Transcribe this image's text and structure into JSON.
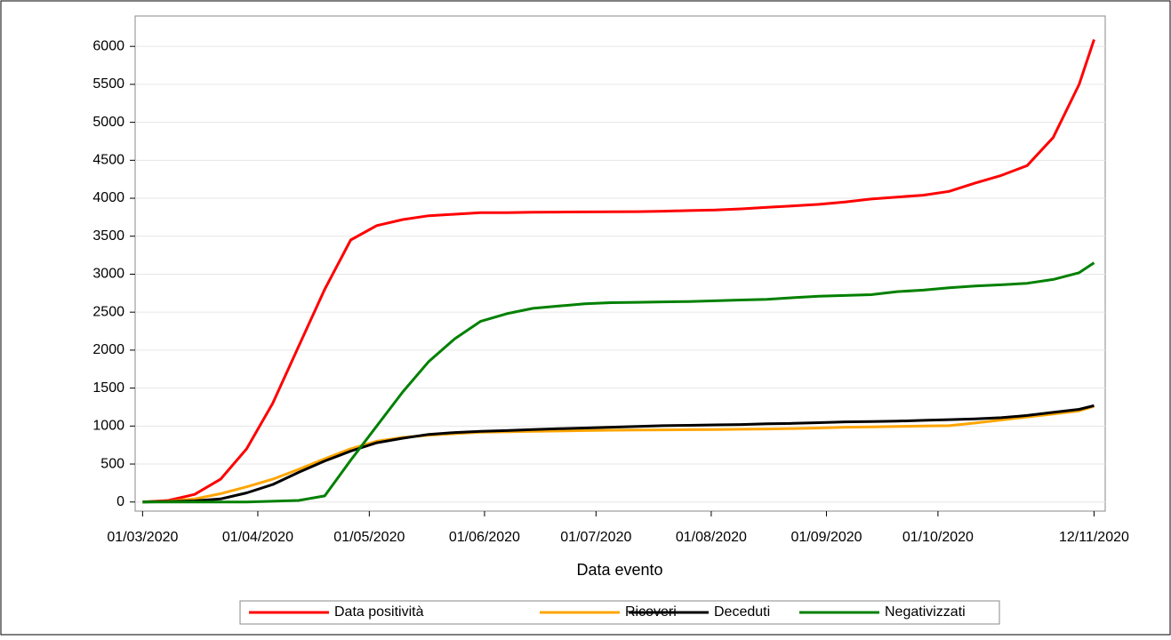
{
  "chart_data": {
    "type": "line",
    "x_label": "Data evento",
    "x": [
      "01/03/2020",
      "08/03/2020",
      "15/03/2020",
      "22/03/2020",
      "29/03/2020",
      "05/04/2020",
      "12/04/2020",
      "19/04/2020",
      "26/04/2020",
      "03/05/2020",
      "10/05/2020",
      "17/05/2020",
      "24/05/2020",
      "31/05/2020",
      "07/06/2020",
      "14/06/2020",
      "21/06/2020",
      "28/06/2020",
      "05/07/2020",
      "12/07/2020",
      "19/07/2020",
      "26/07/2020",
      "02/08/2020",
      "09/08/2020",
      "16/08/2020",
      "23/08/2020",
      "30/08/2020",
      "06/09/2020",
      "13/09/2020",
      "20/09/2020",
      "27/09/2020",
      "04/10/2020",
      "11/10/2020",
      "18/10/2020",
      "25/10/2020",
      "01/11/2020",
      "08/11/2020",
      "12/11/2020"
    ],
    "series": [
      {
        "name": "Data positività",
        "color": "#ff0000",
        "values": [
          0,
          20,
          100,
          300,
          700,
          1300,
          2050,
          2800,
          3450,
          3640,
          3720,
          3770,
          3790,
          3810,
          3810,
          3815,
          3818,
          3820,
          3822,
          3824,
          3830,
          3838,
          3845,
          3860,
          3880,
          3900,
          3920,
          3950,
          3990,
          4015,
          4040,
          4090,
          4200,
          4300,
          4430,
          4800,
          5500,
          6090
        ]
      },
      {
        "name": "Ricoveri",
        "color": "#ffa500",
        "values": [
          0,
          10,
          40,
          110,
          200,
          300,
          430,
          570,
          700,
          800,
          850,
          880,
          900,
          920,
          925,
          930,
          935,
          940,
          945,
          948,
          950,
          952,
          955,
          958,
          962,
          968,
          975,
          985,
          990,
          995,
          1000,
          1005,
          1040,
          1080,
          1120,
          1160,
          1200,
          1260
        ]
      },
      {
        "name": "Deceduti",
        "color": "#000000",
        "values": [
          0,
          5,
          15,
          40,
          120,
          230,
          390,
          540,
          670,
          780,
          840,
          890,
          915,
          930,
          940,
          955,
          965,
          975,
          985,
          995,
          1005,
          1010,
          1015,
          1020,
          1030,
          1035,
          1045,
          1055,
          1060,
          1065,
          1075,
          1085,
          1095,
          1110,
          1140,
          1180,
          1220,
          1270
        ]
      },
      {
        "name": "Negativizzati",
        "color": "#008000",
        "values": [
          0,
          0,
          0,
          0,
          0,
          10,
          20,
          80,
          550,
          1000,
          1450,
          1850,
          2150,
          2380,
          2480,
          2550,
          2580,
          2610,
          2625,
          2630,
          2635,
          2640,
          2650,
          2660,
          2670,
          2690,
          2710,
          2720,
          2730,
          2770,
          2790,
          2820,
          2845,
          2860,
          2880,
          2930,
          3020,
          3150
        ]
      }
    ],
    "xlim": [
      "28/02/2020",
      "15/11/2020"
    ],
    "xticks": [
      "01/03/2020",
      "01/04/2020",
      "01/05/2020",
      "01/06/2020",
      "01/07/2020",
      "01/08/2020",
      "01/09/2020",
      "01/10/2020",
      "12/11/2020"
    ],
    "ylim": [
      -120,
      6400
    ],
    "yticks": [
      0,
      500,
      1000,
      1500,
      2000,
      2500,
      3000,
      3500,
      4000,
      4500,
      5000,
      5500,
      6000
    ],
    "grid": true
  }
}
